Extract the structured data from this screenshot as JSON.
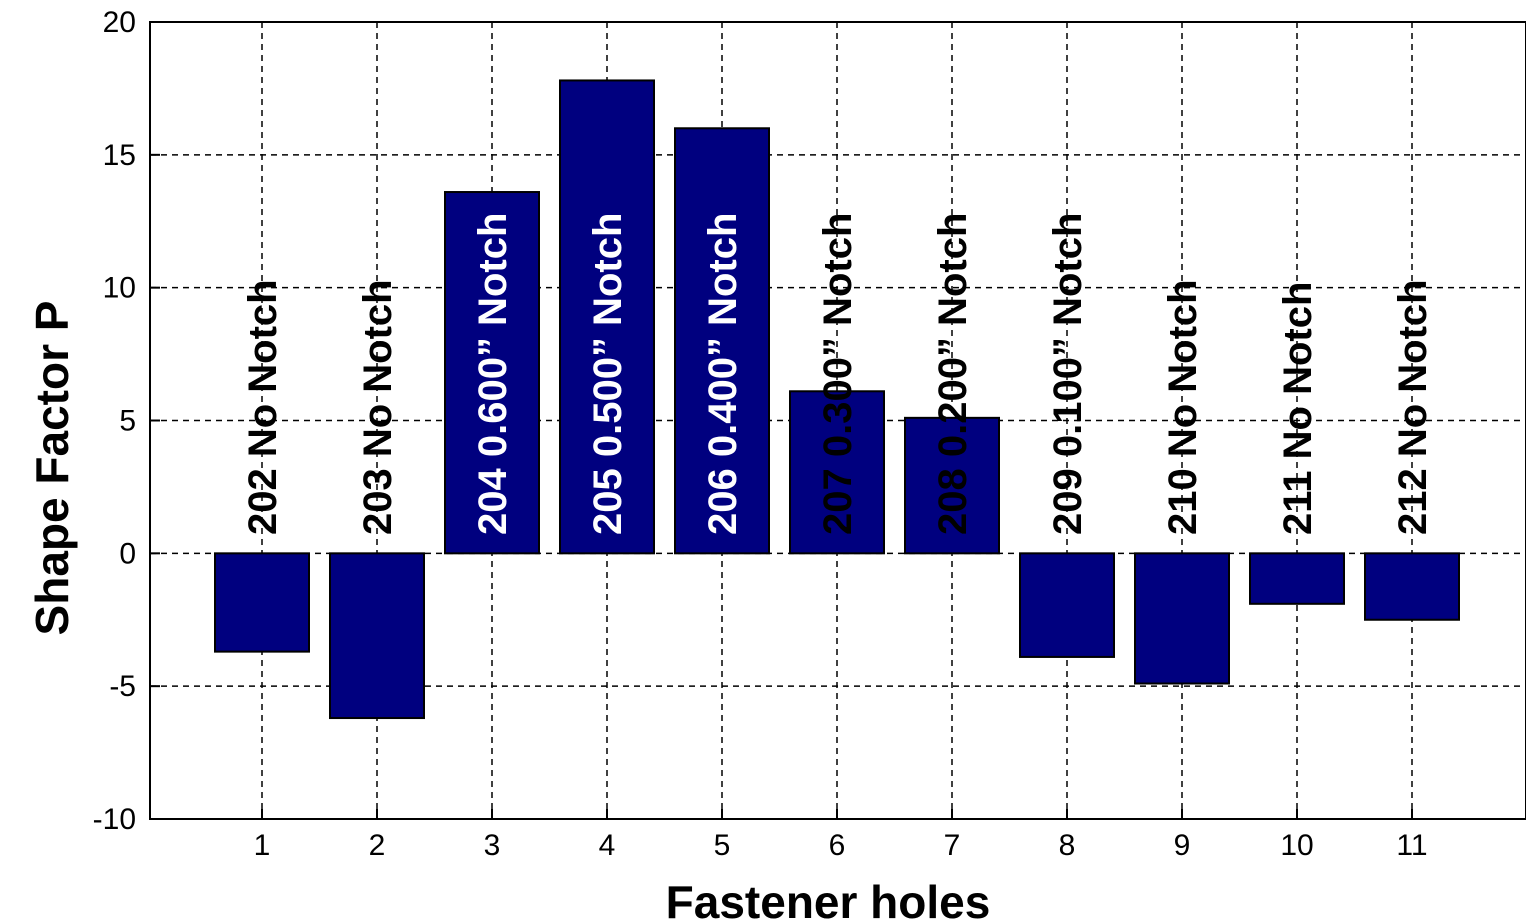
{
  "chart_data": {
    "type": "bar",
    "title": "",
    "xlabel": "Fastener holes",
    "ylabel": "Shape Factor P",
    "ylim": [
      -10,
      20
    ],
    "yticks": [
      "-10",
      "-5",
      "0",
      "5",
      "10",
      "15",
      "20"
    ],
    "categories": [
      "1",
      "2",
      "3",
      "4",
      "5",
      "6",
      "7",
      "8",
      "9",
      "10",
      "11"
    ],
    "values": [
      -3.7,
      -6.2,
      13.6,
      17.8,
      16.0,
      6.1,
      5.1,
      -3.9,
      -4.9,
      -1.9,
      -2.5
    ],
    "bar_labels": [
      "202 No Notch",
      "203 No Notch",
      "204 0.600” Notch",
      "205 0.500” Notch",
      "206 0.400” Notch",
      "207 0.300” Notch",
      "208 0.200” Notch",
      "209 0.100” Notch",
      "210 No Notch",
      "211 No Notch",
      "212 No Notch"
    ],
    "grid": true,
    "grid_style": "dashed",
    "bar_color": "#00007f",
    "legend": "none"
  }
}
